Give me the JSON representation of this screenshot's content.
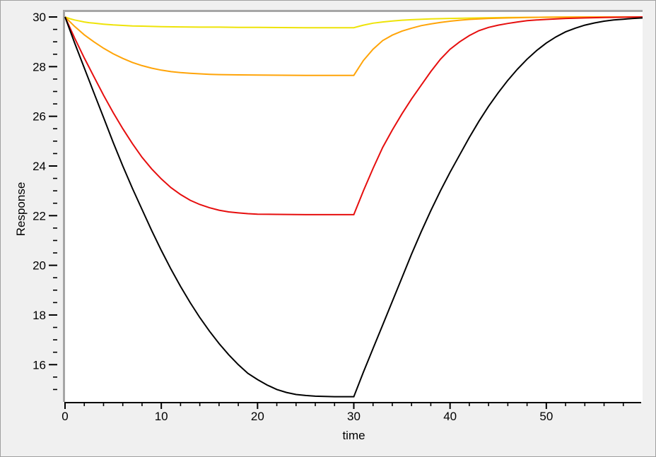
{
  "window": {
    "background": "#f0f0f0",
    "border_color": "#a0a0a0",
    "plot_background": "#ffffff",
    "plot_border_color": "#a6a6a6",
    "axis_color": "#000000",
    "text_color": "#000000"
  },
  "chart_data": {
    "type": "line",
    "title": "",
    "xlabel": "time",
    "ylabel": "Response",
    "xlim": [
      0,
      60
    ],
    "ylim": [
      14.5,
      30.2
    ],
    "x_major_ticks": [
      0,
      10,
      20,
      30,
      40,
      50
    ],
    "x_minor_tick_step": 2,
    "x_minor_tick_max": 58,
    "y_major_ticks": [
      16,
      18,
      20,
      22,
      24,
      26,
      28,
      30
    ],
    "y_minor_tick_step": 0.5,
    "y_minor_tick_min": 15,
    "grid": false,
    "legend": "none",
    "series": [
      {
        "name": "curve-yellow",
        "color": "#eee308",
        "points": [
          [
            0,
            30
          ],
          [
            0.5,
            29.93
          ],
          [
            1,
            29.88
          ],
          [
            1.5,
            29.84
          ],
          [
            2,
            29.8
          ],
          [
            2.5,
            29.77
          ],
          [
            3,
            29.75
          ],
          [
            4,
            29.71
          ],
          [
            5,
            29.68
          ],
          [
            6,
            29.66
          ],
          [
            7,
            29.64
          ],
          [
            8,
            29.63
          ],
          [
            10,
            29.61
          ],
          [
            12,
            29.6
          ],
          [
            14,
            29.59
          ],
          [
            16,
            29.59
          ],
          [
            18,
            29.58
          ],
          [
            20,
            29.58
          ],
          [
            25,
            29.57
          ],
          [
            30,
            29.57
          ],
          [
            31,
            29.67
          ],
          [
            32,
            29.75
          ],
          [
            33,
            29.8
          ],
          [
            34,
            29.84
          ],
          [
            35,
            29.87
          ],
          [
            36,
            29.89
          ],
          [
            38,
            29.92
          ],
          [
            40,
            29.94
          ],
          [
            43,
            29.96
          ],
          [
            46,
            29.98
          ],
          [
            50,
            29.99
          ],
          [
            55,
            30
          ],
          [
            60,
            30
          ]
        ]
      },
      {
        "name": "curve-orange",
        "color": "#ffa408",
        "points": [
          [
            0,
            30
          ],
          [
            1,
            29.62
          ],
          [
            2,
            29.28
          ],
          [
            3,
            29.0
          ],
          [
            4,
            28.74
          ],
          [
            5,
            28.52
          ],
          [
            6,
            28.33
          ],
          [
            7,
            28.17
          ],
          [
            8,
            28.04
          ],
          [
            9,
            27.94
          ],
          [
            10,
            27.86
          ],
          [
            11,
            27.8
          ],
          [
            12,
            27.76
          ],
          [
            13,
            27.73
          ],
          [
            14,
            27.71
          ],
          [
            15,
            27.69
          ],
          [
            16,
            27.68
          ],
          [
            18,
            27.67
          ],
          [
            20,
            27.66
          ],
          [
            25,
            27.65
          ],
          [
            30,
            27.65
          ],
          [
            31,
            28.25
          ],
          [
            32,
            28.7
          ],
          [
            33,
            29.05
          ],
          [
            34,
            29.27
          ],
          [
            35,
            29.43
          ],
          [
            36,
            29.55
          ],
          [
            37,
            29.65
          ],
          [
            38,
            29.72
          ],
          [
            39,
            29.78
          ],
          [
            40,
            29.83
          ],
          [
            41,
            29.87
          ],
          [
            42,
            29.9
          ],
          [
            44,
            29.94
          ],
          [
            46,
            29.96
          ],
          [
            48,
            29.98
          ],
          [
            50,
            29.99
          ],
          [
            55,
            30
          ],
          [
            60,
            30
          ]
        ]
      },
      {
        "name": "curve-red",
        "color": "#e60e0e",
        "points": [
          [
            0,
            30
          ],
          [
            1,
            29.15
          ],
          [
            2,
            28.35
          ],
          [
            3,
            27.6
          ],
          [
            4,
            26.85
          ],
          [
            5,
            26.15
          ],
          [
            6,
            25.5
          ],
          [
            7,
            24.9
          ],
          [
            8,
            24.35
          ],
          [
            9,
            23.88
          ],
          [
            10,
            23.48
          ],
          [
            11,
            23.13
          ],
          [
            12,
            22.85
          ],
          [
            13,
            22.62
          ],
          [
            14,
            22.45
          ],
          [
            15,
            22.32
          ],
          [
            16,
            22.22
          ],
          [
            17,
            22.15
          ],
          [
            18,
            22.11
          ],
          [
            19,
            22.08
          ],
          [
            20,
            22.06
          ],
          [
            22,
            22.05
          ],
          [
            25,
            22.04
          ],
          [
            30,
            22.04
          ],
          [
            31,
            23.0
          ],
          [
            32,
            23.9
          ],
          [
            33,
            24.75
          ],
          [
            34,
            25.45
          ],
          [
            35,
            26.1
          ],
          [
            36,
            26.7
          ],
          [
            37,
            27.25
          ],
          [
            38,
            27.8
          ],
          [
            39,
            28.3
          ],
          [
            40,
            28.7
          ],
          [
            41,
            29.0
          ],
          [
            42,
            29.25
          ],
          [
            43,
            29.45
          ],
          [
            44,
            29.58
          ],
          [
            45,
            29.67
          ],
          [
            46,
            29.74
          ],
          [
            47,
            29.8
          ],
          [
            48,
            29.85
          ],
          [
            49,
            29.88
          ],
          [
            50,
            29.9
          ],
          [
            52,
            29.94
          ],
          [
            54,
            29.96
          ],
          [
            56,
            29.98
          ],
          [
            58,
            29.99
          ],
          [
            60,
            30
          ]
        ]
      },
      {
        "name": "curve-black",
        "color": "#000000",
        "points": [
          [
            0,
            30
          ],
          [
            1,
            28.95
          ],
          [
            2,
            27.95
          ],
          [
            3,
            26.95
          ],
          [
            4,
            25.95
          ],
          [
            5,
            24.95
          ],
          [
            6,
            24.0
          ],
          [
            7,
            23.1
          ],
          [
            8,
            22.25
          ],
          [
            9,
            21.4
          ],
          [
            10,
            20.6
          ],
          [
            11,
            19.85
          ],
          [
            12,
            19.15
          ],
          [
            13,
            18.5
          ],
          [
            14,
            17.9
          ],
          [
            15,
            17.35
          ],
          [
            16,
            16.85
          ],
          [
            17,
            16.4
          ],
          [
            18,
            16.0
          ],
          [
            19,
            15.65
          ],
          [
            20,
            15.4
          ],
          [
            21,
            15.18
          ],
          [
            22,
            15.0
          ],
          [
            23,
            14.88
          ],
          [
            24,
            14.8
          ],
          [
            25,
            14.76
          ],
          [
            26,
            14.73
          ],
          [
            27,
            14.72
          ],
          [
            28,
            14.71
          ],
          [
            29,
            14.71
          ],
          [
            30,
            14.71
          ],
          [
            31,
            15.7
          ],
          [
            32,
            16.65
          ],
          [
            33,
            17.6
          ],
          [
            34,
            18.55
          ],
          [
            35,
            19.5
          ],
          [
            36,
            20.45
          ],
          [
            37,
            21.35
          ],
          [
            38,
            22.2
          ],
          [
            39,
            23.0
          ],
          [
            40,
            23.75
          ],
          [
            41,
            24.45
          ],
          [
            42,
            25.15
          ],
          [
            43,
            25.8
          ],
          [
            44,
            26.4
          ],
          [
            45,
            26.95
          ],
          [
            46,
            27.45
          ],
          [
            47,
            27.9
          ],
          [
            48,
            28.3
          ],
          [
            49,
            28.65
          ],
          [
            50,
            28.95
          ],
          [
            51,
            29.2
          ],
          [
            52,
            29.4
          ],
          [
            53,
            29.55
          ],
          [
            54,
            29.67
          ],
          [
            55,
            29.76
          ],
          [
            56,
            29.83
          ],
          [
            57,
            29.88
          ],
          [
            58,
            29.91
          ],
          [
            59,
            29.94
          ],
          [
            60,
            29.96
          ]
        ]
      }
    ]
  }
}
